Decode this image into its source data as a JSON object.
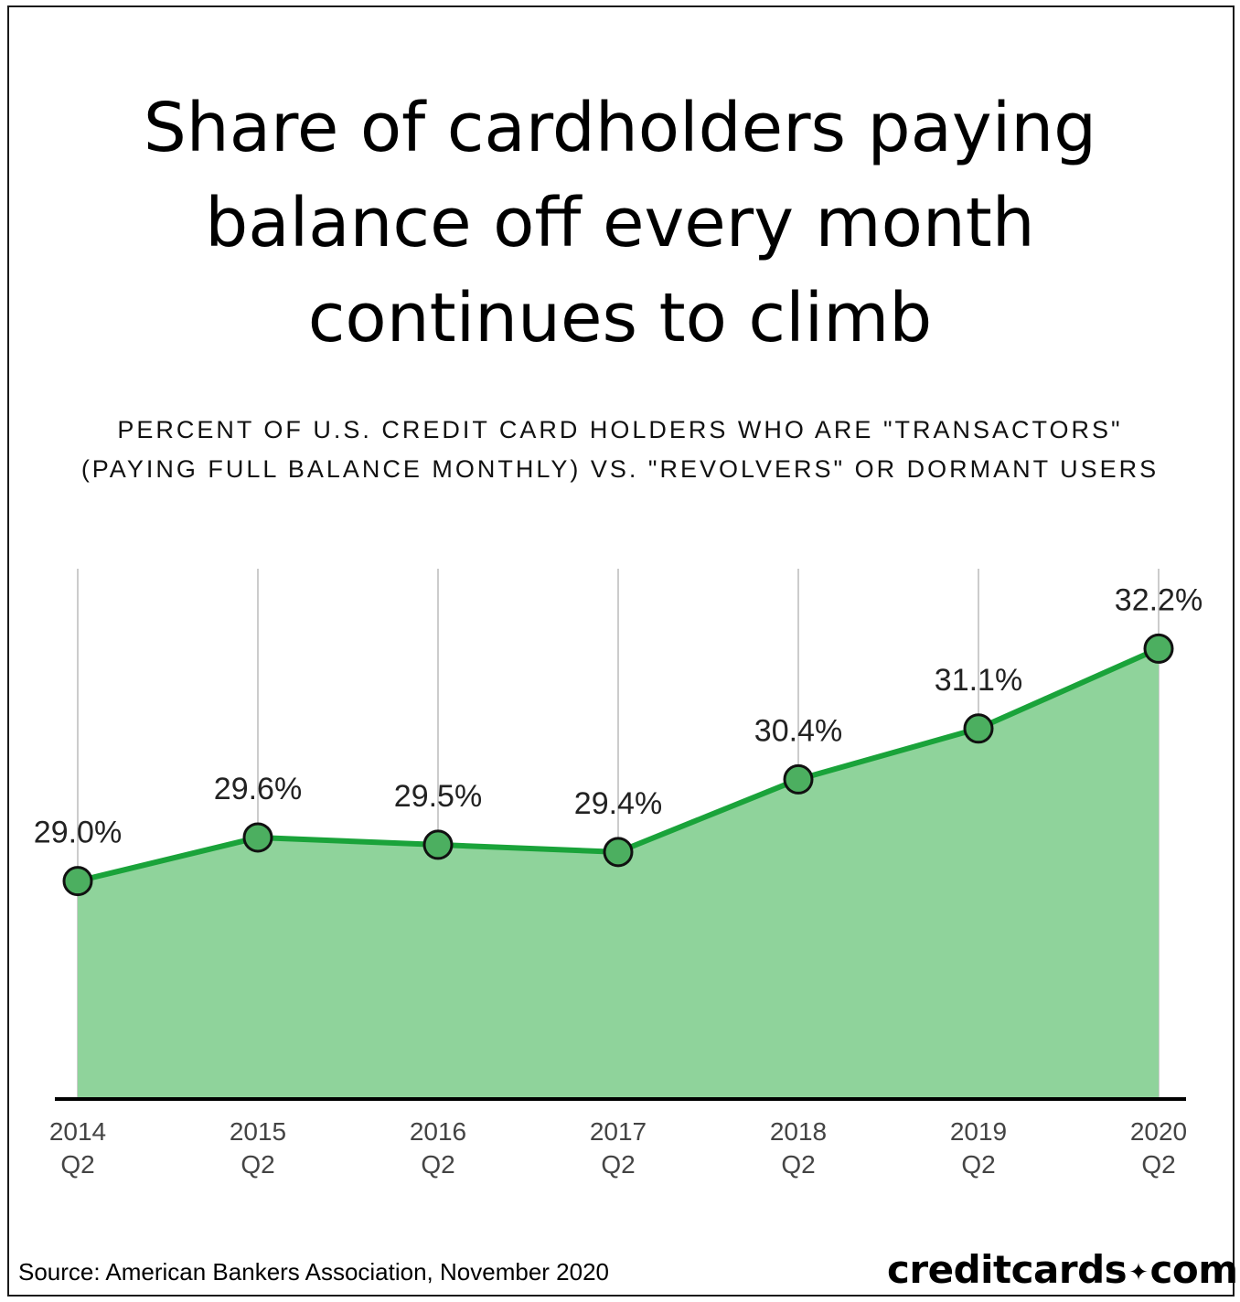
{
  "title_lines": [
    "Share of cardholders paying",
    "balance off every month",
    "continues to climb"
  ],
  "subtitle_lines": [
    "PERCENT OF U.S. CREDIT CARD HOLDERS WHO ARE \"TRANSACTORS\"",
    "(PAYING FULL BALANCE MONTHLY) VS. \"REVOLVERS\" OR DORMANT USERS"
  ],
  "source": "Source: American Bankers Association, November 2020",
  "brand": {
    "left": "creditcards",
    "dot": "✦",
    "right": "com"
  },
  "colors": {
    "line": "#1aa33a",
    "area": "#8fd39b",
    "marker": "#4caf60",
    "axis": "#000000",
    "grid": "#999999"
  },
  "chart_data": {
    "type": "area",
    "title": "Share of cardholders paying balance off every month continues to climb",
    "subtitle": "PERCENT OF U.S. CREDIT CARD HOLDERS WHO ARE \"TRANSACTORS\" (PAYING FULL BALANCE MONTHLY) VS. \"REVOLVERS\" OR DORMANT USERS",
    "categories": [
      [
        "2014",
        "Q2"
      ],
      [
        "2015",
        "Q2"
      ],
      [
        "2016",
        "Q2"
      ],
      [
        "2017",
        "Q2"
      ],
      [
        "2018",
        "Q2"
      ],
      [
        "2019",
        "Q2"
      ],
      [
        "2020",
        "Q2"
      ]
    ],
    "values": [
      29.0,
      29.6,
      29.5,
      29.4,
      30.4,
      31.1,
      32.2
    ],
    "value_labels": [
      "29.0%",
      "29.6%",
      "29.5%",
      "29.4%",
      "30.4%",
      "31.1%",
      "32.2%"
    ],
    "ylim": [
      26.0,
      33.3
    ],
    "grid": "vertical",
    "markers": true,
    "legend": "none"
  }
}
